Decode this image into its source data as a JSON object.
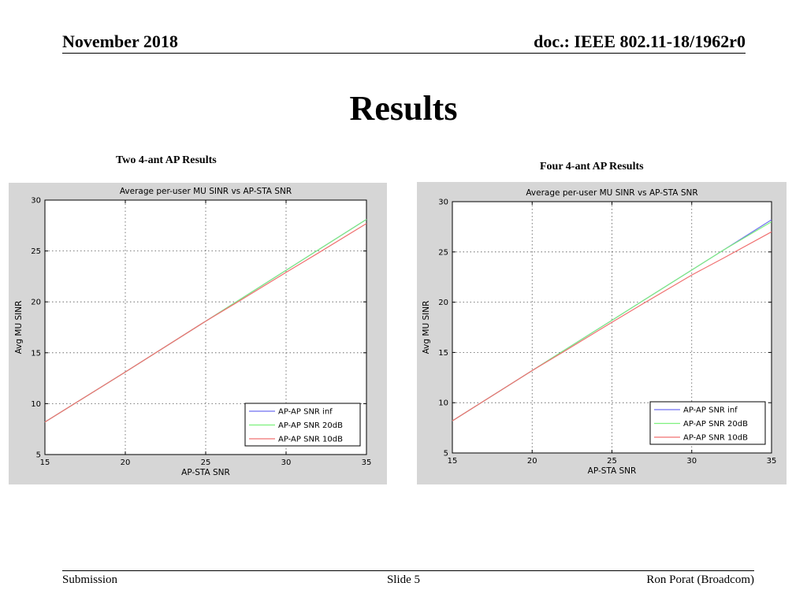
{
  "header": {
    "date": "November 2018",
    "doc": "doc.: IEEE 802.11-18/1962r0"
  },
  "slide_title": "Results",
  "captions": [
    "Two 4-ant AP Results",
    "Four 4-ant AP Results"
  ],
  "footer": {
    "left": "Submission",
    "center": "Slide 5",
    "right": "Ron Porat (Broadcom)"
  },
  "colors": {
    "figure_bg": "#d6d6d6",
    "inf": "#6f6ff0",
    "snr20": "#7df07d",
    "snr10": "#f07070"
  },
  "chart_data": [
    {
      "type": "line",
      "title": "Average per-user MU SINR vs AP-STA SNR",
      "xlabel": "AP-STA SNR",
      "ylabel": "Avg MU SINR",
      "xlim": [
        15,
        35
      ],
      "ylim": [
        5,
        30
      ],
      "xticks": [
        15,
        20,
        25,
        30,
        35
      ],
      "yticks": [
        5,
        10,
        15,
        20,
        25,
        30
      ],
      "grid": true,
      "legend_position": "bottom-right",
      "series": [
        {
          "name": "AP-AP SNR inf",
          "color": "#6f6ff0",
          "x": [
            15,
            20,
            25,
            27,
            30,
            32,
            35
          ],
          "y": [
            8.2,
            13.1,
            18.1,
            20.1,
            23.1,
            25.1,
            28.1
          ]
        },
        {
          "name": "AP-AP SNR 20dB",
          "color": "#7df07d",
          "x": [
            15,
            20,
            25,
            27,
            30,
            32,
            35
          ],
          "y": [
            8.2,
            13.1,
            18.1,
            20.1,
            23.1,
            25.1,
            28.1
          ]
        },
        {
          "name": "AP-AP SNR 10dB",
          "color": "#f07070",
          "x": [
            15,
            20,
            25,
            27,
            30,
            32,
            35
          ],
          "y": [
            8.2,
            13.1,
            18.1,
            20.0,
            22.9,
            24.8,
            27.7
          ]
        }
      ]
    },
    {
      "type": "line",
      "title": "Average per-user MU SINR vs AP-STA SNR",
      "xlabel": "AP-STA SNR",
      "ylabel": "Avg MU SINR",
      "xlim": [
        15,
        35
      ],
      "ylim": [
        5,
        30
      ],
      "xticks": [
        15,
        20,
        25,
        30,
        35
      ],
      "yticks": [
        5,
        10,
        15,
        20,
        25,
        30
      ],
      "grid": true,
      "legend_position": "bottom-right",
      "series": [
        {
          "name": "AP-AP SNR inf",
          "color": "#6f6ff0",
          "x": [
            15,
            20,
            22,
            25,
            27,
            30,
            32,
            35
          ],
          "y": [
            8.2,
            13.2,
            15.2,
            18.2,
            20.2,
            23.2,
            25.2,
            28.2
          ]
        },
        {
          "name": "AP-AP SNR 20dB",
          "color": "#7df07d",
          "x": [
            15,
            20,
            22,
            25,
            27,
            30,
            32,
            35
          ],
          "y": [
            8.2,
            13.2,
            15.2,
            18.2,
            20.2,
            23.2,
            25.2,
            28.0
          ]
        },
        {
          "name": "AP-AP SNR 10dB",
          "color": "#f07070",
          "x": [
            15,
            20,
            22,
            25,
            27,
            30,
            32,
            35
          ],
          "y": [
            8.2,
            13.2,
            15.1,
            18.0,
            19.9,
            22.7,
            24.4,
            27.0
          ]
        }
      ]
    }
  ]
}
